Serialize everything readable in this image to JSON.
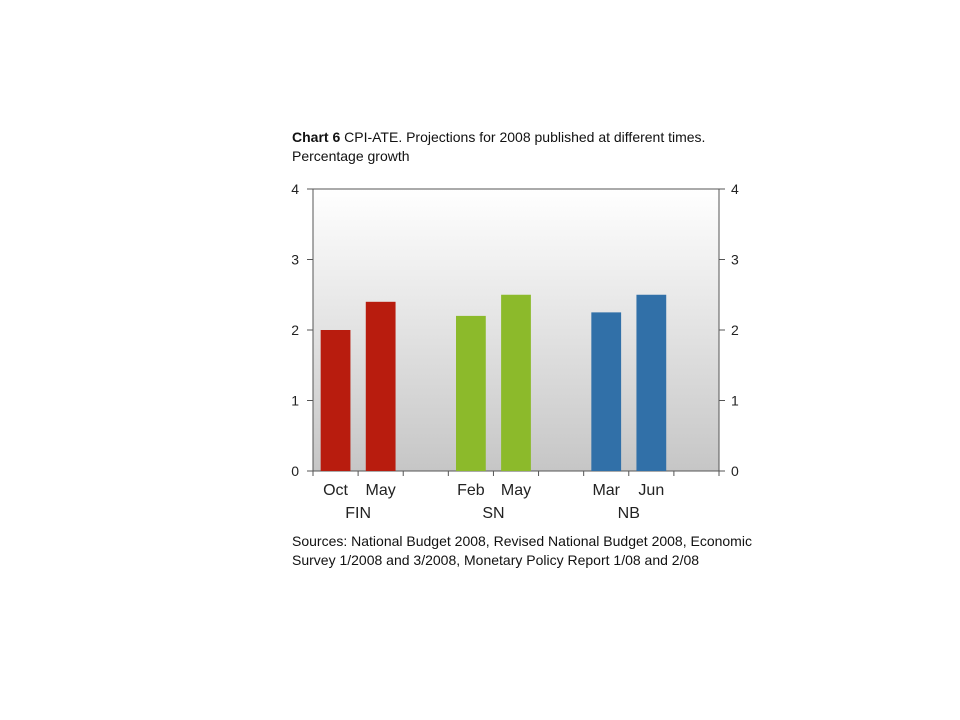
{
  "title": {
    "number": "Chart 6",
    "text": " CPI-ATE.  Projections for 2008 published at different times. Percentage growth"
  },
  "sources": "Sources: National Budget 2008, Revised National Budget 2008, Economic Survey 1/2008 and 3/2008, Monetary Policy Report 1/08 and 2/08",
  "chart_data": {
    "type": "bar",
    "title": "CPI-ATE.  Projections for 2008 published at different times. Percentage growth",
    "ylim": [
      0,
      4
    ],
    "yticks": [
      "0",
      "1",
      "2",
      "3",
      "4"
    ],
    "y2ticks": [
      "0",
      "1",
      "2",
      "3",
      "4"
    ],
    "grid": false,
    "groups": [
      {
        "label": "FIN",
        "color": "#b81c0e",
        "bars": [
          {
            "label": "Oct",
            "value": 2.0
          },
          {
            "label": "May",
            "value": 2.4
          }
        ]
      },
      {
        "label": "SN",
        "color": "#8cba2b",
        "bars": [
          {
            "label": "Feb",
            "value": 2.2
          },
          {
            "label": "May",
            "value": 2.5
          }
        ]
      },
      {
        "label": "NB",
        "color": "#3170a8",
        "bars": [
          {
            "label": "Mar",
            "value": 2.25
          },
          {
            "label": "Jun",
            "value": 2.5
          }
        ]
      }
    ]
  }
}
